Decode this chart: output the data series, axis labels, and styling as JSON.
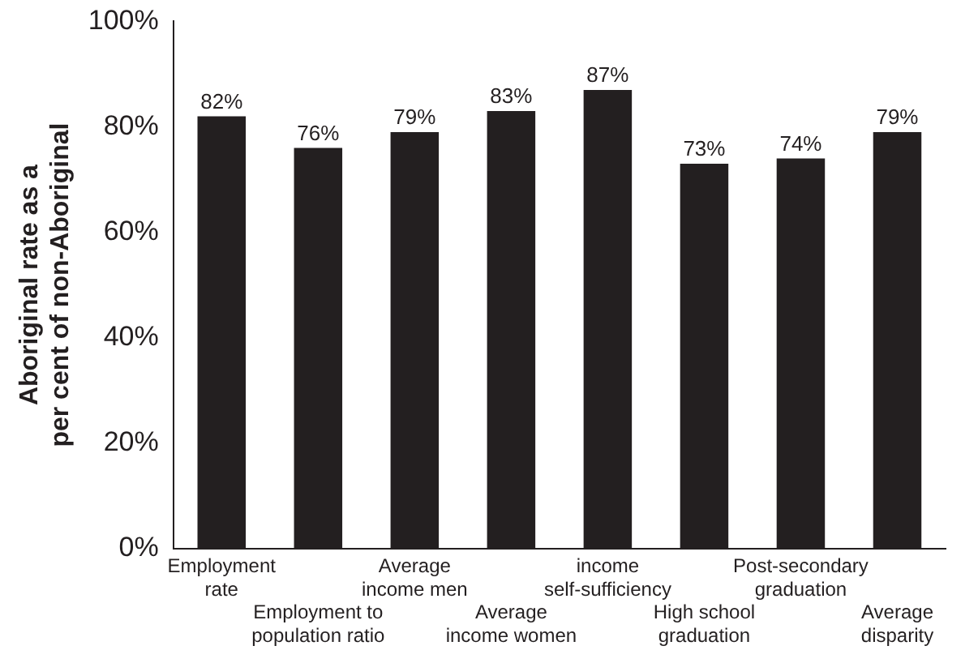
{
  "chart_data": {
    "type": "bar",
    "ylabel": "Aboriginal rate as a\nper cent of non-Aboriginal",
    "categories": [
      "Employment\nrate",
      "Employment to\npopulation ratio",
      "Average\nincome men",
      "Average\nincome women",
      "income\nself-sufficiency",
      "High school\ngraduation",
      "Post-secondary\ngraduation",
      "Average\ndisparity"
    ],
    "values": [
      82,
      76,
      79,
      83,
      87,
      73,
      74,
      79
    ],
    "value_labels": [
      "82%",
      "76%",
      "79%",
      "83%",
      "87%",
      "73%",
      "74%",
      "79%"
    ],
    "color": "#231f20",
    "ylim": [
      0,
      100
    ],
    "yticks": [
      {
        "value": 0,
        "label": "0%"
      },
      {
        "value": 20,
        "label": "20%"
      },
      {
        "value": 40,
        "label": "40%"
      },
      {
        "value": 60,
        "label": "60%"
      },
      {
        "value": 80,
        "label": "80%"
      },
      {
        "value": 100,
        "label": "100%"
      }
    ],
    "grid": false,
    "legend": false
  }
}
